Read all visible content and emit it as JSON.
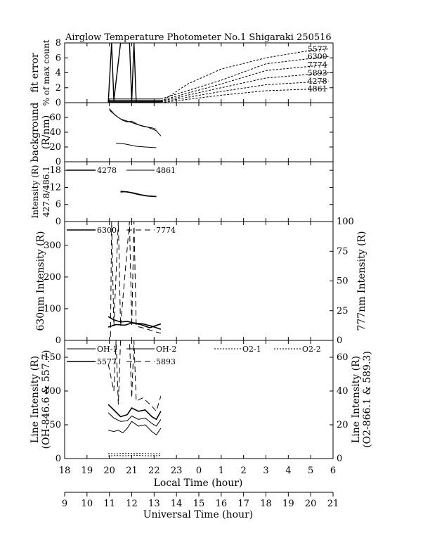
{
  "title": "Airglow Temperature Photometer No.1  Shigaraki  250516",
  "chart_data": [
    {
      "panel": "fit-error",
      "type": "line",
      "ylabel_lines": [
        "fit error",
        "% of max count"
      ],
      "ylim": [
        0,
        8
      ],
      "yticks": [
        0,
        2,
        4,
        6,
        8
      ],
      "series": [
        {
          "name": "5577",
          "points": [
            [
              19.95,
              0.0
            ],
            [
              20.1,
              8.0
            ],
            [
              20.2,
              0.3
            ],
            [
              20.5,
              8.0
            ],
            [
              20.9,
              8.0
            ],
            [
              21.0,
              0.2
            ],
            [
              21.1,
              8.0
            ],
            [
              21.2,
              0.1
            ],
            [
              22.3,
              0.1
            ],
            [
              23.5,
              2.5
            ],
            [
              25,
              4.5
            ],
            [
              27,
              6.0
            ],
            [
              29,
              7.0
            ],
            [
              29.8,
              7.2
            ]
          ],
          "style": "solid-then-dashed"
        },
        {
          "name": "6300",
          "points": [
            [
              19.95,
              0.5
            ],
            [
              22.3,
              0.5
            ],
            [
              25,
              3.0
            ],
            [
              27,
              5.2
            ],
            [
              29.8,
              6.2
            ]
          ]
        },
        {
          "name": "7774",
          "points": [
            [
              19.95,
              0.3
            ],
            [
              22.3,
              0.3
            ],
            [
              25,
              2.5
            ],
            [
              27,
              4.3
            ],
            [
              29.8,
              5.1
            ]
          ]
        },
        {
          "name": "5893",
          "points": [
            [
              19.95,
              0.2
            ],
            [
              22.3,
              0.2
            ],
            [
              25,
              2.0
            ],
            [
              27,
              3.3
            ],
            [
              29.8,
              4.0
            ]
          ]
        },
        {
          "name": "4278",
          "points": [
            [
              19.95,
              0.1
            ],
            [
              22.3,
              0.1
            ],
            [
              25,
              1.5
            ],
            [
              27,
              2.4
            ],
            [
              29.8,
              2.9
            ]
          ]
        },
        {
          "name": "4861",
          "points": [
            [
              19.95,
              0.0
            ],
            [
              22.3,
              0.0
            ],
            [
              25,
              1.0
            ],
            [
              27,
              1.6
            ],
            [
              29.8,
              1.9
            ]
          ]
        }
      ]
    },
    {
      "panel": "background",
      "type": "line",
      "ylabel_lines": [
        "background",
        "(R/nm)"
      ],
      "ylim": [
        0,
        80
      ],
      "yticks": [
        0,
        20,
        40,
        60
      ],
      "series": [
        {
          "points": [
            [
              20.0,
              72
            ],
            [
              20.2,
              65
            ],
            [
              20.4,
              60
            ],
            [
              20.6,
              56
            ],
            [
              20.8,
              54
            ],
            [
              21.0,
              55
            ],
            [
              21.3,
              50
            ],
            [
              21.7,
              47
            ],
            [
              22.1,
              42
            ],
            [
              22.3,
              35
            ]
          ]
        },
        {
          "points": [
            [
              20.0,
              70
            ],
            [
              20.3,
              62
            ],
            [
              20.5,
              58
            ],
            [
              20.8,
              55
            ],
            [
              21.1,
              52
            ],
            [
              21.5,
              48
            ],
            [
              21.9,
              46
            ],
            [
              22.1,
              44
            ]
          ]
        },
        {
          "points": [
            [
              20.3,
              25
            ],
            [
              20.7,
              24
            ],
            [
              21.2,
              21
            ],
            [
              21.6,
              20
            ],
            [
              22.1,
              19
            ]
          ]
        }
      ]
    },
    {
      "panel": "intensity-4278-4861",
      "type": "line",
      "ylabel_lines": [
        "Intensity (R)",
        "427.8/486.1"
      ],
      "ylim": [
        0,
        21
      ],
      "yticks": [
        0,
        6,
        12,
        18
      ],
      "legend": [
        "4278",
        "4861"
      ],
      "series": [
        {
          "name": "4278",
          "points": [
            [
              20.5,
              10.6
            ],
            [
              20.8,
              10.4
            ],
            [
              21.1,
              10.0
            ],
            [
              21.4,
              9.4
            ],
            [
              21.7,
              9.0
            ],
            [
              22.1,
              8.8
            ]
          ]
        },
        {
          "name": "4861",
          "points": [
            [
              20.5,
              10.3
            ],
            [
              20.8,
              10.5
            ],
            [
              21.1,
              9.8
            ],
            [
              21.4,
              9.3
            ],
            [
              21.7,
              8.9
            ],
            [
              22.1,
              8.7
            ]
          ]
        }
      ]
    },
    {
      "panel": "intensity-6300-7774",
      "type": "line",
      "ylabel_left": "630nm Intensity (R)",
      "ylabel_right": "777nm Intensity (R)",
      "ylim": [
        0,
        375
      ],
      "yticks": [
        0,
        100,
        200,
        300
      ],
      "ylim_right": [
        0,
        100
      ],
      "yticks_right": [
        0,
        25,
        50,
        75,
        100
      ],
      "legend": [
        "6300",
        "7774"
      ],
      "series": [
        {
          "name": "6300",
          "points": [
            [
              19.95,
              75
            ],
            [
              20.2,
              65
            ],
            [
              20.5,
              58
            ],
            [
              20.8,
              60
            ],
            [
              21.1,
              55
            ],
            [
              21.5,
              52
            ],
            [
              21.9,
              45
            ],
            [
              22.3,
              35
            ]
          ]
        },
        {
          "name": "6300",
          "points": [
            [
              19.95,
              42
            ],
            [
              20.3,
              50
            ],
            [
              20.7,
              48
            ],
            [
              21.0,
              55
            ],
            [
              21.4,
              50
            ],
            [
              21.8,
              40
            ],
            [
              22.3,
              52
            ]
          ]
        },
        {
          "name": "7774",
          "axis": "right",
          "points": [
            [
              20.05,
              3
            ],
            [
              20.1,
              100
            ],
            [
              20.2,
              12
            ],
            [
              20.4,
              100
            ],
            [
              20.5,
              12
            ],
            [
              20.9,
              100
            ],
            [
              21.0,
              12
            ],
            [
              21.1,
              100
            ],
            [
              21.2,
              12
            ],
            [
              21.6,
              10
            ],
            [
              22.1,
              7
            ],
            [
              22.3,
              6
            ]
          ]
        }
      ]
    },
    {
      "panel": "line-intensity",
      "type": "line",
      "ylabel_left_lines": [
        "Line Intensity (R)",
        "(OH-846.6 & 557.7)"
      ],
      "ylabel_right_lines": [
        "Line Intensity (R)",
        "(O2-866.1 & 589.3)"
      ],
      "ylim": [
        0,
        175
      ],
      "yticks": [
        0,
        50,
        100,
        150
      ],
      "ylim_right": [
        0,
        70
      ],
      "yticks_right": [
        0,
        20,
        40,
        60
      ],
      "legend": [
        "OH-1",
        "OH-2",
        "O2-1",
        "O2-2",
        "5577",
        "5893"
      ],
      "series": [
        {
          "name": "OH-1",
          "points": [
            [
              19.95,
              68
            ],
            [
              20.2,
              60
            ],
            [
              20.5,
              55
            ],
            [
              20.8,
              56
            ],
            [
              21.0,
              63
            ],
            [
              21.3,
              58
            ],
            [
              21.6,
              60
            ],
            [
              21.9,
              52
            ],
            [
              22.1,
              48
            ],
            [
              22.3,
              58
            ]
          ]
        },
        {
          "name": "OH-2",
          "points": [
            [
              19.95,
              42
            ],
            [
              20.2,
              40
            ],
            [
              20.4,
              42
            ],
            [
              20.6,
              38
            ],
            [
              20.8,
              45
            ],
            [
              21.0,
              55
            ],
            [
              21.3,
              48
            ],
            [
              21.6,
              50
            ],
            [
              21.9,
              40
            ],
            [
              22.1,
              35
            ],
            [
              22.3,
              45
            ]
          ]
        },
        {
          "name": "O2-1",
          "axis": "right",
          "points": [
            [
              19.95,
              3.0
            ],
            [
              20.3,
              2.8
            ],
            [
              20.7,
              3.2
            ],
            [
              21.1,
              3.0
            ],
            [
              21.5,
              3.1
            ],
            [
              21.9,
              2.8
            ],
            [
              22.3,
              2.9
            ]
          ]
        },
        {
          "name": "O2-2",
          "axis": "right",
          "points": [
            [
              19.95,
              1.5
            ],
            [
              20.3,
              1.8
            ],
            [
              20.7,
              1.6
            ],
            [
              21.1,
              2.0
            ],
            [
              21.5,
              1.7
            ],
            [
              21.9,
              1.6
            ],
            [
              22.3,
              1.8
            ]
          ]
        },
        {
          "name": "5577",
          "points": [
            [
              19.95,
              80
            ],
            [
              20.2,
              72
            ],
            [
              20.5,
              62
            ],
            [
              20.8,
              65
            ],
            [
              21.0,
              75
            ],
            [
              21.3,
              70
            ],
            [
              21.6,
              72
            ],
            [
              21.9,
              62
            ],
            [
              22.1,
              58
            ],
            [
              22.3,
              70
            ]
          ]
        },
        {
          "name": "5893",
          "axis": "right",
          "points": [
            [
              19.95,
              56
            ],
            [
              20.2,
              40
            ],
            [
              20.3,
              70
            ],
            [
              20.4,
              32
            ],
            [
              20.5,
              70
            ],
            [
              20.9,
              70
            ],
            [
              21.0,
              36
            ],
            [
              21.1,
              70
            ],
            [
              21.2,
              34
            ],
            [
              21.5,
              36
            ],
            [
              21.9,
              31
            ],
            [
              22.1,
              28
            ],
            [
              22.3,
              37
            ]
          ]
        }
      ]
    }
  ],
  "xaxis_local": {
    "label": "Local Time (hour)",
    "range": [
      18,
      30
    ],
    "ticks": [
      18,
      19,
      20,
      21,
      22,
      23,
      24,
      25,
      26,
      27,
      28,
      29,
      30
    ],
    "tick_labels": [
      "18",
      "19",
      "20",
      "21",
      "22",
      "23",
      "0",
      "1",
      "2",
      "3",
      "4",
      "5",
      "6"
    ]
  },
  "xaxis_universal": {
    "label": "Universal Time (hour)",
    "range": [
      9,
      21
    ],
    "ticks": [
      9,
      10,
      11,
      12,
      13,
      14,
      15,
      16,
      17,
      18,
      19,
      20,
      21
    ],
    "tick_labels": [
      "9",
      "10",
      "11",
      "12",
      "13",
      "14",
      "15",
      "16",
      "17",
      "18",
      "19",
      "20",
      "21"
    ]
  }
}
